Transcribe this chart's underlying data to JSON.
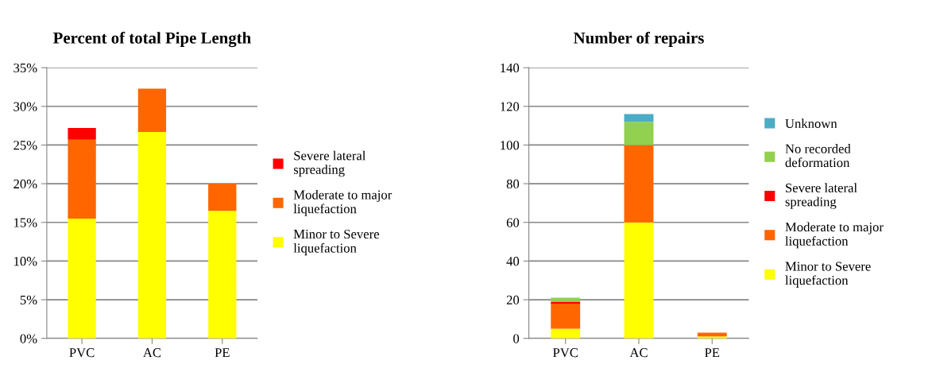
{
  "chart_data": [
    {
      "type": "bar",
      "title": "Percent of total Pipe Length",
      "categories": [
        "PVC",
        "AC",
        "PE"
      ],
      "stacked": true,
      "grid": "y",
      "legend": "right",
      "ylim": [
        0,
        35
      ],
      "yticks": [
        {
          "value": 0,
          "label": "0%"
        },
        {
          "value": 5,
          "label": "5%"
        },
        {
          "value": 10,
          "label": "10%"
        },
        {
          "value": 15,
          "label": "15%"
        },
        {
          "value": 20,
          "label": "20%"
        },
        {
          "value": 25,
          "label": "25%"
        },
        {
          "value": 30,
          "label": "30%"
        },
        {
          "value": 35,
          "label": "35%"
        }
      ],
      "series": [
        {
          "name": "Minor to Severe liquefaction",
          "color": "#ffff00",
          "values": [
            15.5,
            26.7,
            16.5
          ]
        },
        {
          "name": "Moderate to major liquefaction",
          "color": "#ff6600",
          "values": [
            10.2,
            5.6,
            3.5
          ]
        },
        {
          "name": "Severe lateral spreading",
          "color": "#ff0000",
          "values": [
            1.5,
            0,
            0
          ]
        }
      ]
    },
    {
      "type": "bar",
      "title": "Number of repairs",
      "categories": [
        "PVC",
        "AC",
        "PE"
      ],
      "stacked": true,
      "grid": "y",
      "legend": "right",
      "ylim": [
        0,
        140
      ],
      "yticks": [
        0,
        20,
        40,
        60,
        80,
        100,
        120,
        140
      ],
      "series": [
        {
          "name": "Minor to Severe liquefaction",
          "color": "#ffff00",
          "values": [
            5,
            60,
            1
          ]
        },
        {
          "name": "Moderate to major liquefaction",
          "color": "#ff6600",
          "values": [
            13,
            40,
            2
          ]
        },
        {
          "name": "Severe lateral spreading",
          "color": "#ff0000",
          "values": [
            1,
            0,
            0
          ]
        },
        {
          "name": "No recorded deformation",
          "color": "#92d050",
          "values": [
            2,
            12,
            0
          ]
        },
        {
          "name": "Unknown",
          "color": "#4bacc6",
          "values": [
            0,
            4,
            0
          ]
        }
      ]
    }
  ]
}
